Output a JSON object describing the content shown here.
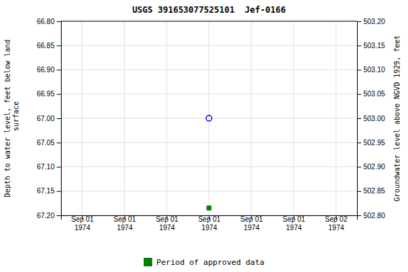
{
  "chart_data": {
    "type": "scatter",
    "title": "USGS 391653077525101  Jef-0166",
    "y_label": "Depth to water level, feet below land\n surface",
    "y2_label": "Groundwater level above NGVD 1929, feet",
    "categories": [
      "Sep 01\n1974",
      "Sep 01\n1974",
      "Sep 01\n1974",
      "Sep 01\n1974",
      "Sep 01\n1974",
      "Sep 01\n1974",
      "Sep 02\n1974"
    ],
    "series": [
      {
        "color": "blue",
        "marker": "open_circle",
        "values": [
          null,
          null,
          null,
          67.0,
          null,
          null,
          null
        ]
      },
      {
        "name": "Period of approved data",
        "color": "green",
        "marker": "square",
        "values": [
          null,
          null,
          null,
          67.185,
          null,
          null,
          null
        ]
      }
    ],
    "ylim": [
      67.2,
      66.8
    ],
    "yticks": [
      {
        "value": 66.8,
        "label": "66.80"
      },
      {
        "value": 66.85,
        "label": "66.85"
      },
      {
        "value": 66.9,
        "label": "66.90"
      },
      {
        "value": 66.95,
        "label": "66.95"
      },
      {
        "value": 67.0,
        "label": "67.00"
      },
      {
        "value": 67.05,
        "label": "67.05"
      },
      {
        "value": 67.1,
        "label": "67.10"
      },
      {
        "value": 67.15,
        "label": "67.15"
      },
      {
        "value": 67.2,
        "label": "67.20"
      }
    ],
    "y2lim": [
      502.8,
      503.2
    ],
    "y2ticks": [
      {
        "value": 503.2,
        "label": "503.20"
      },
      {
        "value": 503.15,
        "label": "503.15"
      },
      {
        "value": 503.1,
        "label": "503.10"
      },
      {
        "value": 503.05,
        "label": "503.05"
      },
      {
        "value": 503.0,
        "label": "503.00"
      },
      {
        "value": 502.95,
        "label": "502.95"
      },
      {
        "value": 502.9,
        "label": "502.90"
      },
      {
        "value": 502.85,
        "label": "502.85"
      },
      {
        "value": 502.8,
        "label": "502.80"
      }
    ],
    "grid": true,
    "legend": "bottom"
  }
}
